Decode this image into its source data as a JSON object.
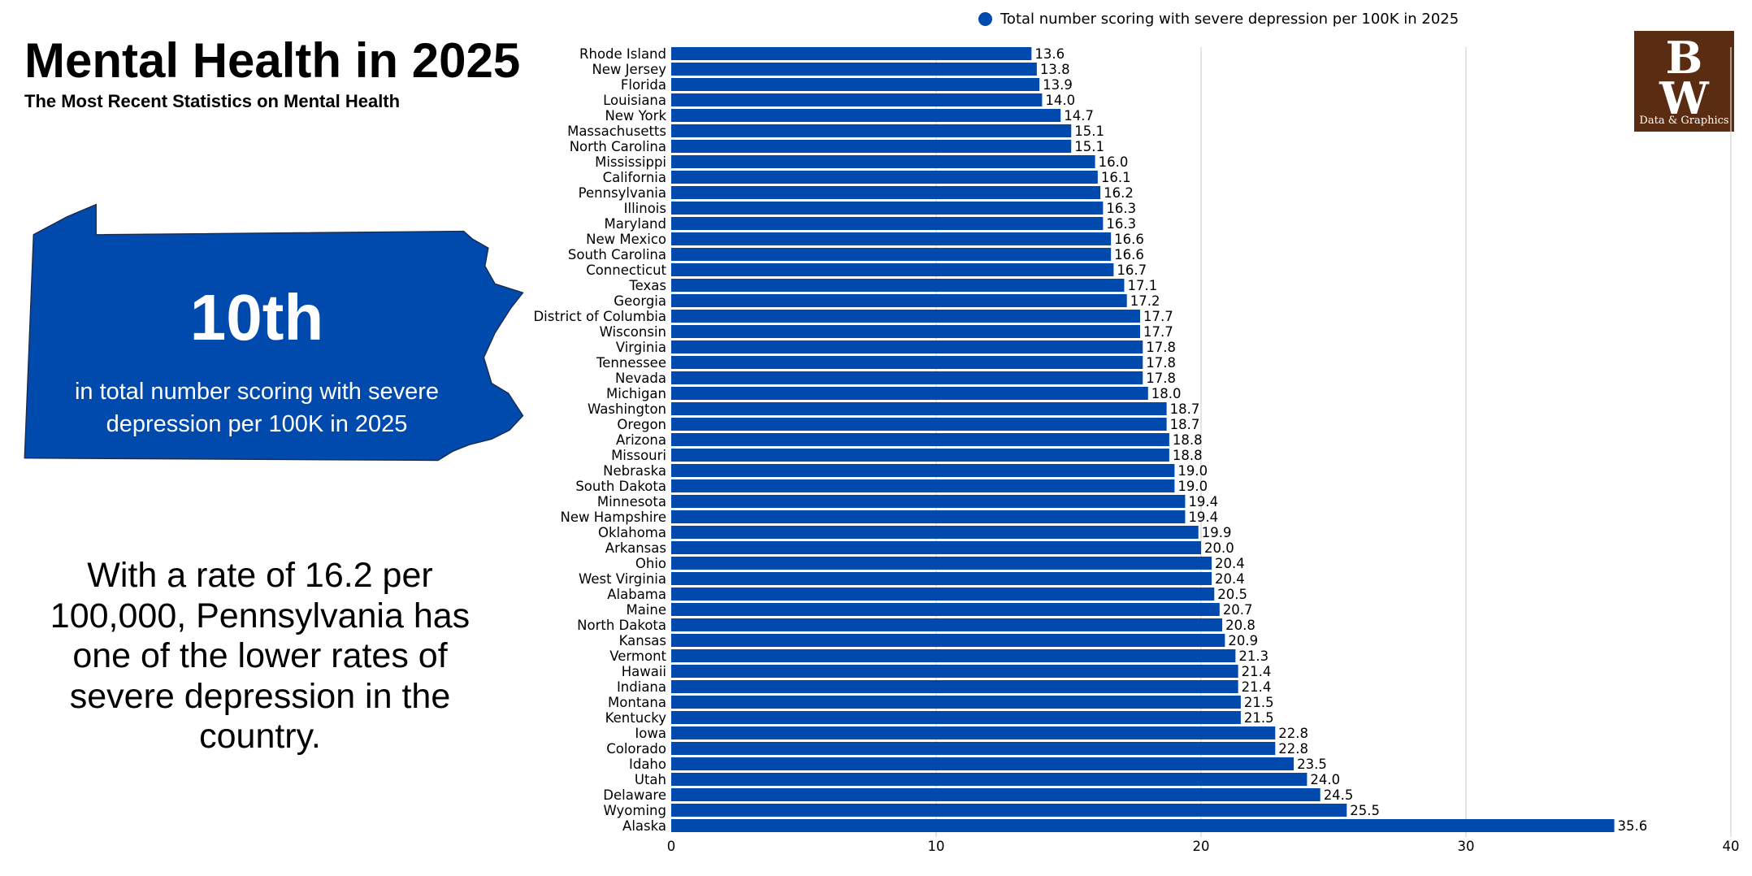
{
  "header": {
    "title": "Mental Health in 2025",
    "subtitle": "The Most Recent Statistics on Mental Health"
  },
  "highlight": {
    "rank": "10th",
    "description": "in total number scoring with severe depression per 100K in 2025",
    "state_color": "#004aad"
  },
  "summary": "With a rate of 16.2 per 100,000, Pennsylvania has one of the lower rates of severe depression in the country.",
  "logo": {
    "text": "BW",
    "caption": "Data & Graphics",
    "color": "#5a2d12"
  },
  "chart_data": {
    "type": "bar",
    "orientation": "horizontal",
    "legend": "top",
    "grid": true,
    "xlim": [
      0,
      40
    ],
    "xticks": [
      0,
      10,
      20,
      30,
      40
    ],
    "bar_color": "#004aad",
    "series": [
      {
        "name": "Total number scoring with severe depression per 100K in 2025"
      }
    ],
    "categories": [
      "Rhode Island",
      "New Jersey",
      "Florida",
      "Louisiana",
      "New York",
      "Massachusetts",
      "North Carolina",
      "Mississippi",
      "California",
      "Pennsylvania",
      "Illinois",
      "Maryland",
      "New Mexico",
      "South Carolina",
      "Connecticut",
      "Texas",
      "Georgia",
      "District of Columbia",
      "Wisconsin",
      "Virginia",
      "Tennessee",
      "Nevada",
      "Michigan",
      "Washington",
      "Oregon",
      "Arizona",
      "Missouri",
      "Nebraska",
      "South Dakota",
      "Minnesota",
      "New Hampshire",
      "Oklahoma",
      "Arkansas",
      "Ohio",
      "West Virginia",
      "Alabama",
      "Maine",
      "North Dakota",
      "Kansas",
      "Vermont",
      "Hawaii",
      "Indiana",
      "Montana",
      "Kentucky",
      "Iowa",
      "Colorado",
      "Idaho",
      "Utah",
      "Delaware",
      "Wyoming",
      "Alaska"
    ],
    "values": [
      13.6,
      13.8,
      13.9,
      14.0,
      14.7,
      15.1,
      15.1,
      16.0,
      16.1,
      16.2,
      16.3,
      16.3,
      16.6,
      16.6,
      16.7,
      17.1,
      17.2,
      17.7,
      17.7,
      17.8,
      17.8,
      17.8,
      18.0,
      18.7,
      18.7,
      18.8,
      18.8,
      19.0,
      19.0,
      19.4,
      19.4,
      19.9,
      20.0,
      20.4,
      20.4,
      20.5,
      20.7,
      20.8,
      20.9,
      21.3,
      21.4,
      21.4,
      21.5,
      21.5,
      22.8,
      22.8,
      23.5,
      24.0,
      24.5,
      25.5,
      35.6
    ]
  }
}
